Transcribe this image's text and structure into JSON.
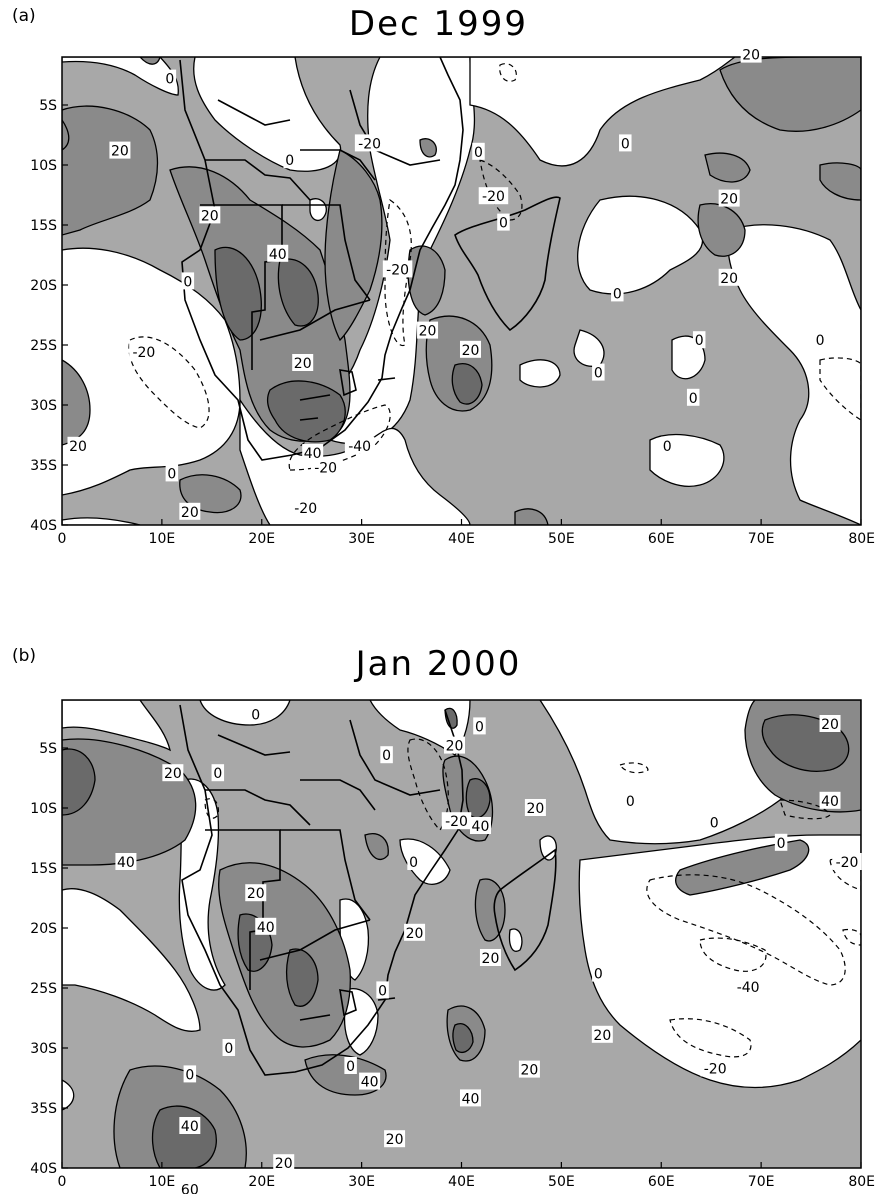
{
  "panels": [
    {
      "letter": "(a)",
      "title": "Dec 1999",
      "contour_labels": [
        {
          "text": "0",
          "lon": 10.8,
          "lat": -2.8
        },
        {
          "text": "20",
          "lon": 5.8,
          "lat": -8.8
        },
        {
          "text": "0",
          "lon": 22.8,
          "lat": -9.6
        },
        {
          "text": "-20",
          "lon": 30.8,
          "lat": -8.2
        },
        {
          "text": "0",
          "lon": 41.7,
          "lat": -8.9
        },
        {
          "text": "-20",
          "lon": 43.2,
          "lat": -12.6
        },
        {
          "text": "0",
          "lon": 56.4,
          "lat": -8.2
        },
        {
          "text": "20",
          "lon": 66.8,
          "lat": -12.8
        },
        {
          "text": "20",
          "lon": 14.8,
          "lat": -14.2
        },
        {
          "text": "0",
          "lon": 44.2,
          "lat": -14.8
        },
        {
          "text": "40",
          "lon": 21.6,
          "lat": -17.4
        },
        {
          "text": "-20",
          "lon": 33.6,
          "lat": -18.7
        },
        {
          "text": "20",
          "lon": 66.8,
          "lat": -19.4
        },
        {
          "text": "0",
          "lon": 12.6,
          "lat": -19.7
        },
        {
          "text": "0",
          "lon": 55.6,
          "lat": -20.7
        },
        {
          "text": "20",
          "lon": 36.6,
          "lat": -23.8
        },
        {
          "text": "0",
          "lon": 63.8,
          "lat": -24.6
        },
        {
          "text": "0",
          "lon": 75.9,
          "lat": -24.6
        },
        {
          "text": "-20",
          "lon": 8.2,
          "lat": -25.6
        },
        {
          "text": "20",
          "lon": 40.9,
          "lat": -25.4
        },
        {
          "text": "20",
          "lon": 24.1,
          "lat": -26.5
        },
        {
          "text": "0",
          "lon": 53.7,
          "lat": -27.3
        },
        {
          "text": "0",
          "lon": 63.2,
          "lat": -29.4
        },
        {
          "text": "40",
          "lon": 25.1,
          "lat": -34.0
        },
        {
          "text": "-40",
          "lon": 29.8,
          "lat": -33.4
        },
        {
          "text": "-20",
          "lon": 26.4,
          "lat": -35.2
        },
        {
          "text": "20",
          "lon": 1.6,
          "lat": -33.4
        },
        {
          "text": "0",
          "lon": 11.0,
          "lat": -35.7
        },
        {
          "text": "0",
          "lon": 60.6,
          "lat": -33.4
        },
        {
          "text": "20",
          "lon": 12.8,
          "lat": -38.9
        },
        {
          "text": "-20",
          "lon": 24.4,
          "lat": -38.6
        },
        {
          "text": "20",
          "lon": 69.0,
          "lat": -0.8
        }
      ]
    },
    {
      "letter": "(b)",
      "title": "Jan 2000",
      "contour_labels": [
        {
          "text": "0",
          "lon": 19.4,
          "lat": -2.2
        },
        {
          "text": "20",
          "lon": 76.9,
          "lat": -3.0
        },
        {
          "text": "0",
          "lon": 41.8,
          "lat": -3.2
        },
        {
          "text": "20",
          "lon": 39.3,
          "lat": -4.8
        },
        {
          "text": "0",
          "lon": 32.5,
          "lat": -5.6
        },
        {
          "text": "20",
          "lon": 11.1,
          "lat": -7.1
        },
        {
          "text": "0",
          "lon": 15.6,
          "lat": -7.1
        },
        {
          "text": "20",
          "lon": 47.4,
          "lat": -10.0
        },
        {
          "text": "0",
          "lon": 56.9,
          "lat": -9.4
        },
        {
          "text": "40",
          "lon": 76.9,
          "lat": -9.4
        },
        {
          "text": "-20",
          "lon": 39.5,
          "lat": -11.1
        },
        {
          "text": "40",
          "lon": 41.9,
          "lat": -11.5
        },
        {
          "text": "0",
          "lon": 65.3,
          "lat": -11.2
        },
        {
          "text": "0",
          "lon": 72.0,
          "lat": -12.9
        },
        {
          "text": "40",
          "lon": 6.4,
          "lat": -14.5
        },
        {
          "text": "0",
          "lon": 35.2,
          "lat": -14.5
        },
        {
          "text": "-20",
          "lon": 78.6,
          "lat": -14.5
        },
        {
          "text": "20",
          "lon": 19.4,
          "lat": -17.1
        },
        {
          "text": "40",
          "lon": 20.4,
          "lat": -19.9
        },
        {
          "text": "20",
          "lon": 35.3,
          "lat": -20.4
        },
        {
          "text": "20",
          "lon": 42.9,
          "lat": -22.5
        },
        {
          "text": "0",
          "lon": 53.7,
          "lat": -23.8
        },
        {
          "text": "-40",
          "lon": 68.7,
          "lat": -24.9
        },
        {
          "text": "0",
          "lon": 32.1,
          "lat": -25.2
        },
        {
          "text": "20",
          "lon": 54.1,
          "lat": -28.9
        },
        {
          "text": "0",
          "lon": 16.7,
          "lat": -30.0
        },
        {
          "text": "0",
          "lon": 28.9,
          "lat": -31.5
        },
        {
          "text": "20",
          "lon": 46.8,
          "lat": -31.8
        },
        {
          "text": "-20",
          "lon": 65.4,
          "lat": -31.7
        },
        {
          "text": "0",
          "lon": 12.8,
          "lat": -32.2
        },
        {
          "text": "40",
          "lon": 30.8,
          "lat": -32.8
        },
        {
          "text": "40",
          "lon": 40.9,
          "lat": -34.2
        },
        {
          "text": "40",
          "lon": 12.8,
          "lat": -36.5
        },
        {
          "text": "20",
          "lon": 33.3,
          "lat": -37.6
        },
        {
          "text": "20",
          "lon": 22.2,
          "lat": -39.6
        },
        {
          "text": "60",
          "lon": 12.8,
          "lat": -41.8
        }
      ]
    }
  ],
  "x_axis": {
    "ticks": [
      "0",
      "10E",
      "20E",
      "30E",
      "40E",
      "50E",
      "60E",
      "70E",
      "80E"
    ],
    "range": [
      0,
      80
    ]
  },
  "y_axis": {
    "ticks": [
      "5S",
      "10S",
      "15S",
      "20S",
      "25S",
      "30S",
      "35S",
      "40S"
    ],
    "range": [
      -1,
      -40
    ]
  },
  "colors": {
    "light_shade": "#a8a8a8",
    "mid_shade": "#8a8a8a",
    "dark_shade": "#6a6a6a",
    "unshaded": "#ffffff",
    "lines": "#000000"
  }
}
